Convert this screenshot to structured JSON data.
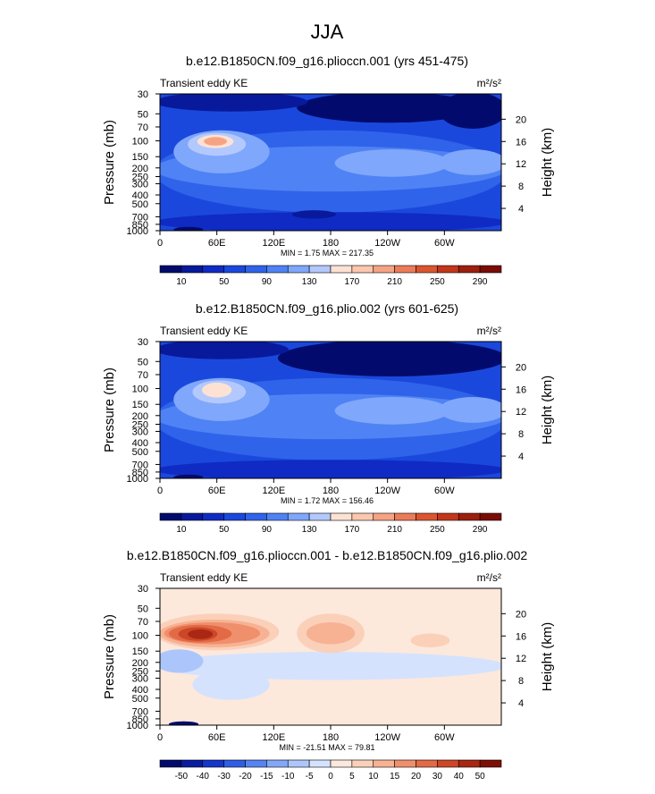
{
  "main_title": "JJA",
  "colors": {
    "abs_levels": [
      "#020b6d",
      "#08199b",
      "#0f2bc4",
      "#1b48dc",
      "#2f63ea",
      "#4f82f4",
      "#7fa7fb",
      "#b3c9fd",
      "#fde2d4",
      "#fbc7ae",
      "#f6a384",
      "#ec7c59",
      "#db5531",
      "#c2371b",
      "#9d1f0f",
      "#7a0c05"
    ],
    "diff_levels": [
      "#020b6d",
      "#0a1d9f",
      "#1536c9",
      "#2f5ee4",
      "#5683f2",
      "#83a7f8",
      "#acc6fc",
      "#d4e2fe",
      "#fde8dc",
      "#fbd0b9",
      "#f7b293",
      "#f08f6c",
      "#e26a47",
      "#cd4628",
      "#a82813",
      "#7e0f05"
    ]
  },
  "chart_data": [
    {
      "type": "heatmap",
      "title": "b.e12.B1850CN.f09_g16.plioccn.001 (yrs 451-475)",
      "left_label": "Transient eddy KE",
      "units": "m²/s²",
      "ylabel": "Pressure (mb)",
      "ylabel_right": "Height (km)",
      "x_ticks": [
        "0",
        "60E",
        "120E",
        "180",
        "120W",
        "60W"
      ],
      "x_tick_lon": [
        0,
        60,
        120,
        180,
        240,
        300
      ],
      "xlim": [
        0,
        360
      ],
      "pressure_ticks": [
        30,
        50,
        70,
        100,
        150,
        200,
        250,
        300,
        400,
        500,
        700,
        850,
        1000
      ],
      "ylim_mb": [
        1000,
        30
      ],
      "height_ticks_km": [
        4,
        8,
        12,
        16,
        20
      ],
      "stats": "MIN =     1.75   MAX =  217.35",
      "min": 1.75,
      "max": 217.35,
      "colorbar_labels": [
        "10",
        "50",
        "90",
        "130",
        "170",
        "210",
        "250",
        "290"
      ],
      "colorbar_levels": [
        10,
        30,
        50,
        70,
        90,
        110,
        130,
        150,
        170,
        190,
        210,
        230,
        250,
        270,
        290
      ],
      "field": {
        "background_level": 3,
        "regions": [
          {
            "lon": [
              300,
              360
            ],
            "mb": [
              30,
              70
            ],
            "level": 0
          },
          {
            "lon": [
              150,
              330
            ],
            "mb": [
              30,
              60
            ],
            "level": 0
          },
          {
            "lon": [
              0,
              150
            ],
            "mb": [
              30,
              45
            ],
            "level": 1
          },
          {
            "lon": [
              0,
              360
            ],
            "mb": [
              80,
              600
            ],
            "level": 4
          },
          {
            "lon": [
              0,
              360
            ],
            "mb": [
              120,
              350
            ],
            "level": 5
          },
          {
            "lon": [
              20,
              110
            ],
            "mb": [
              80,
              220
            ],
            "level": 6
          },
          {
            "lon": [
              35,
              85
            ],
            "mb": [
              85,
              140
            ],
            "level": 7
          },
          {
            "lon": [
              45,
              72
            ],
            "mb": [
              90,
              115
            ],
            "level": 8
          },
          {
            "lon": [
              52,
              65
            ],
            "mb": [
              95,
              108
            ],
            "level": 10
          },
          {
            "lon": [
              190,
              300
            ],
            "mb": [
              130,
              240
            ],
            "level": 6
          },
          {
            "lon": [
              300,
              360
            ],
            "mb": [
              130,
              230
            ],
            "level": 6
          },
          {
            "lon": [
              0,
              360
            ],
            "mb": [
              650,
              1000
            ],
            "level": 2
          },
          {
            "lon": [
              145,
              180
            ],
            "mb": [
              620,
              700
            ],
            "level": 1
          },
          {
            "lon": [
              20,
              40
            ],
            "mb": [
              950,
              1000
            ],
            "level": 0
          }
        ]
      }
    },
    {
      "type": "heatmap",
      "title": "b.e12.B1850CN.f09_g16.plio.002 (yrs 601-625)",
      "left_label": "Transient eddy KE",
      "units": "m²/s²",
      "ylabel": "Pressure (mb)",
      "ylabel_right": "Height (km)",
      "x_ticks": [
        "0",
        "60E",
        "120E",
        "180",
        "120W",
        "60W"
      ],
      "x_tick_lon": [
        0,
        60,
        120,
        180,
        240,
        300
      ],
      "xlim": [
        0,
        360
      ],
      "pressure_ticks": [
        30,
        50,
        70,
        100,
        150,
        200,
        250,
        300,
        400,
        500,
        700,
        850,
        1000
      ],
      "ylim_mb": [
        1000,
        30
      ],
      "height_ticks_km": [
        4,
        8,
        12,
        16,
        20
      ],
      "stats": "MIN =     1.72   MAX =  156.46",
      "min": 1.72,
      "max": 156.46,
      "colorbar_labels": [
        "10",
        "50",
        "90",
        "130",
        "170",
        "210",
        "250",
        "290"
      ],
      "colorbar_levels": [
        10,
        30,
        50,
        70,
        90,
        110,
        130,
        150,
        170,
        190,
        210,
        230,
        250,
        270,
        290
      ],
      "field": {
        "background_level": 3,
        "regions": [
          {
            "lon": [
              130,
              360
            ],
            "mb": [
              30,
              70
            ],
            "level": 0
          },
          {
            "lon": [
              0,
              130
            ],
            "mb": [
              30,
              45
            ],
            "level": 1
          },
          {
            "lon": [
              0,
              360
            ],
            "mb": [
              80,
              600
            ],
            "level": 4
          },
          {
            "lon": [
              0,
              360
            ],
            "mb": [
              120,
              350
            ],
            "level": 5
          },
          {
            "lon": [
              20,
              110
            ],
            "mb": [
              80,
              220
            ],
            "level": 6
          },
          {
            "lon": [
              40,
              85
            ],
            "mb": [
              85,
              140
            ],
            "level": 7
          },
          {
            "lon": [
              50,
              70
            ],
            "mb": [
              90,
              120
            ],
            "level": 8
          },
          {
            "lon": [
              190,
              300
            ],
            "mb": [
              130,
              240
            ],
            "level": 6
          },
          {
            "lon": [
              300,
              360
            ],
            "mb": [
              130,
              230
            ],
            "level": 6
          },
          {
            "lon": [
              0,
              360
            ],
            "mb": [
              650,
              1000
            ],
            "level": 2
          },
          {
            "lon": [
              20,
              40
            ],
            "mb": [
              950,
              1000
            ],
            "level": 0
          }
        ]
      }
    },
    {
      "type": "heatmap",
      "title": "b.e12.B1850CN.f09_g16.plioccn.001 - b.e12.B1850CN.f09_g16.plio.002",
      "left_label": "Transient eddy KE",
      "units": "m²/s²",
      "ylabel": "Pressure (mb)",
      "ylabel_right": "Height (km)",
      "x_ticks": [
        "0",
        "60E",
        "120E",
        "180",
        "120W",
        "60W"
      ],
      "x_tick_lon": [
        0,
        60,
        120,
        180,
        240,
        300
      ],
      "xlim": [
        0,
        360
      ],
      "pressure_ticks": [
        30,
        50,
        70,
        100,
        150,
        200,
        250,
        300,
        400,
        500,
        700,
        850,
        1000
      ],
      "ylim_mb": [
        1000,
        30
      ],
      "height_ticks_km": [
        4,
        8,
        12,
        16,
        20
      ],
      "stats": "MIN = -21.51   MAX =   79.81",
      "min": -21.51,
      "max": 79.81,
      "colorbar_labels": [
        "-50",
        "-40",
        "-30",
        "-20",
        "-15",
        "-10",
        "-5",
        "0",
        "5",
        "10",
        "15",
        "20",
        "30",
        "40",
        "50"
      ],
      "colorbar_levels": [
        -50,
        -40,
        -30,
        -20,
        -15,
        -10,
        -5,
        0,
        5,
        10,
        15,
        20,
        30,
        40,
        50
      ],
      "field": {
        "background_level": 8,
        "regions": [
          {
            "lon": [
              0,
              360
            ],
            "mb": [
              160,
              300
            ],
            "level": 7
          },
          {
            "lon": [
              0,
              40
            ],
            "mb": [
              150,
              250
            ],
            "level": 6
          },
          {
            "lon": [
              40,
              110
            ],
            "mb": [
              250,
              500
            ],
            "level": 7
          },
          {
            "lon": [
              0,
              120
            ],
            "mb": [
              60,
              140
            ],
            "level": 9
          },
          {
            "lon": [
              5,
              110
            ],
            "mb": [
              70,
              130
            ],
            "level": 10
          },
          {
            "lon": [
              10,
              100
            ],
            "mb": [
              75,
              120
            ],
            "level": 11
          },
          {
            "lon": [
              15,
              70
            ],
            "mb": [
              80,
              115
            ],
            "level": 12
          },
          {
            "lon": [
              25,
              55
            ],
            "mb": [
              85,
              110
            ],
            "level": 13
          },
          {
            "lon": [
              35,
              50
            ],
            "mb": [
              90,
              105
            ],
            "level": 14
          },
          {
            "lon": [
              150,
              210
            ],
            "mb": [
              60,
              150
            ],
            "level": 9
          },
          {
            "lon": [
              160,
              200
            ],
            "mb": [
              75,
              120
            ],
            "level": 10
          },
          {
            "lon": [
              270,
              300
            ],
            "mb": [
              100,
              130
            ],
            "level": 9
          },
          {
            "lon": [
              15,
              35
            ],
            "mb": [
              950,
              1000
            ],
            "level": 0
          }
        ]
      }
    }
  ]
}
